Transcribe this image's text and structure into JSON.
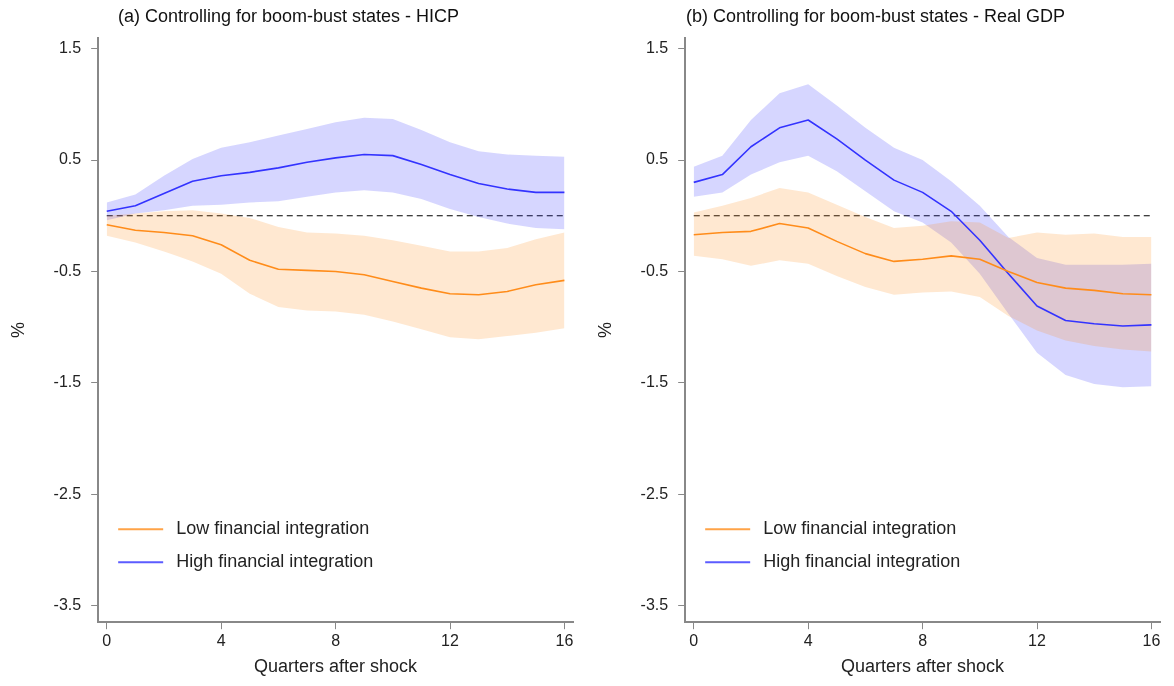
{
  "chart_data": [
    {
      "type": "line",
      "title": "(a) Controlling for boom-bust states - HICP",
      "xlabel": "Quarters after shock",
      "ylabel": "%",
      "x": [
        0,
        1,
        2,
        3,
        4,
        5,
        6,
        7,
        8,
        9,
        10,
        11,
        12,
        13,
        14,
        15,
        16
      ],
      "series": [
        {
          "name": "Low financial integration",
          "color": "#ff8c1a",
          "values": [
            -0.08,
            -0.13,
            -0.15,
            -0.18,
            -0.26,
            -0.4,
            -0.48,
            -0.49,
            -0.5,
            -0.53,
            -0.59,
            -0.65,
            -0.7,
            -0.71,
            -0.68,
            -0.62,
            -0.58
          ],
          "lower": [
            -0.18,
            -0.24,
            -0.32,
            -0.41,
            -0.52,
            -0.7,
            -0.82,
            -0.85,
            -0.86,
            -0.89,
            -0.95,
            -1.02,
            -1.09,
            -1.11,
            -1.08,
            -1.05,
            -1.01
          ],
          "upper": [
            0.0,
            0.02,
            0.04,
            0.05,
            0.02,
            -0.02,
            -0.1,
            -0.15,
            -0.16,
            -0.18,
            -0.22,
            -0.27,
            -0.32,
            -0.32,
            -0.29,
            -0.21,
            -0.15
          ]
        },
        {
          "name": "High financial integration",
          "color": "#3333ff",
          "values": [
            0.04,
            0.09,
            0.2,
            0.31,
            0.36,
            0.39,
            0.43,
            0.48,
            0.52,
            0.55,
            0.54,
            0.46,
            0.37,
            0.29,
            0.24,
            0.21,
            0.21
          ],
          "lower": [
            -0.04,
            0.02,
            0.05,
            0.09,
            0.1,
            0.12,
            0.13,
            0.17,
            0.21,
            0.23,
            0.21,
            0.15,
            0.06,
            -0.01,
            -0.07,
            -0.11,
            -0.12
          ],
          "upper": [
            0.12,
            0.19,
            0.36,
            0.51,
            0.61,
            0.66,
            0.72,
            0.78,
            0.84,
            0.88,
            0.87,
            0.77,
            0.66,
            0.58,
            0.55,
            0.54,
            0.53
          ]
        }
      ],
      "xlim": [
        -0.3,
        16.3
      ],
      "xticks": [
        0,
        4,
        8,
        12,
        16
      ],
      "ylim": [
        -3.65,
        1.6
      ],
      "yticks": [
        1.5,
        0.5,
        -0.5,
        -1.5,
        -2.5,
        -3.5
      ],
      "ref_lines": [
        {
          "axis": "y",
          "value": 0,
          "color": "#000000",
          "line_style": "dashed"
        }
      ],
      "grid": false,
      "legend": "bottom left",
      "marker": "none",
      "line_style": "solid"
    },
    {
      "type": "line",
      "title": "(b) Controlling for boom-bust states - Real GDP",
      "xlabel": "Quarters after shock",
      "ylabel": "%",
      "x": [
        0,
        1,
        2,
        3,
        4,
        5,
        6,
        7,
        8,
        9,
        10,
        11,
        12,
        13,
        14,
        15,
        16
      ],
      "series": [
        {
          "name": "Low financial integration",
          "color": "#ff8c1a",
          "values": [
            -0.17,
            -0.15,
            -0.14,
            -0.07,
            -0.11,
            -0.23,
            -0.34,
            -0.41,
            -0.39,
            -0.36,
            -0.39,
            -0.5,
            -0.6,
            -0.65,
            -0.67,
            -0.7,
            -0.71
          ],
          "lower": [
            -0.36,
            -0.39,
            -0.45,
            -0.4,
            -0.43,
            -0.54,
            -0.64,
            -0.71,
            -0.69,
            -0.68,
            -0.73,
            -0.9,
            -1.03,
            -1.12,
            -1.17,
            -1.2,
            -1.22
          ],
          "upper": [
            0.03,
            0.09,
            0.16,
            0.25,
            0.21,
            0.1,
            -0.01,
            -0.11,
            -0.09,
            -0.05,
            -0.06,
            -0.2,
            -0.15,
            -0.17,
            -0.16,
            -0.19,
            -0.19
          ]
        },
        {
          "name": "High financial integration",
          "color": "#3333ff",
          "values": [
            0.3,
            0.37,
            0.62,
            0.79,
            0.86,
            0.69,
            0.5,
            0.32,
            0.21,
            0.04,
            -0.22,
            -0.52,
            -0.81,
            -0.94,
            -0.97,
            -0.99,
            -0.98
          ],
          "lower": [
            0.17,
            0.21,
            0.37,
            0.48,
            0.54,
            0.4,
            0.22,
            0.04,
            -0.06,
            -0.24,
            -0.52,
            -0.88,
            -1.23,
            -1.43,
            -1.51,
            -1.54,
            -1.53
          ],
          "upper": [
            0.44,
            0.54,
            0.86,
            1.1,
            1.18,
            0.99,
            0.79,
            0.61,
            0.5,
            0.31,
            0.09,
            -0.19,
            -0.38,
            -0.44,
            -0.44,
            -0.44,
            -0.43
          ]
        }
      ],
      "xlim": [
        -0.3,
        16.3
      ],
      "xticks": [
        0,
        4,
        8,
        12,
        16
      ],
      "ylim": [
        -3.65,
        1.6
      ],
      "yticks": [
        1.5,
        0.5,
        -0.5,
        -1.5,
        -2.5,
        -3.5
      ],
      "ref_lines": [
        {
          "axis": "y",
          "value": 0,
          "color": "#000000",
          "line_style": "dashed"
        }
      ],
      "grid": false,
      "legend": "bottom left",
      "marker": "none",
      "line_style": "solid"
    }
  ]
}
